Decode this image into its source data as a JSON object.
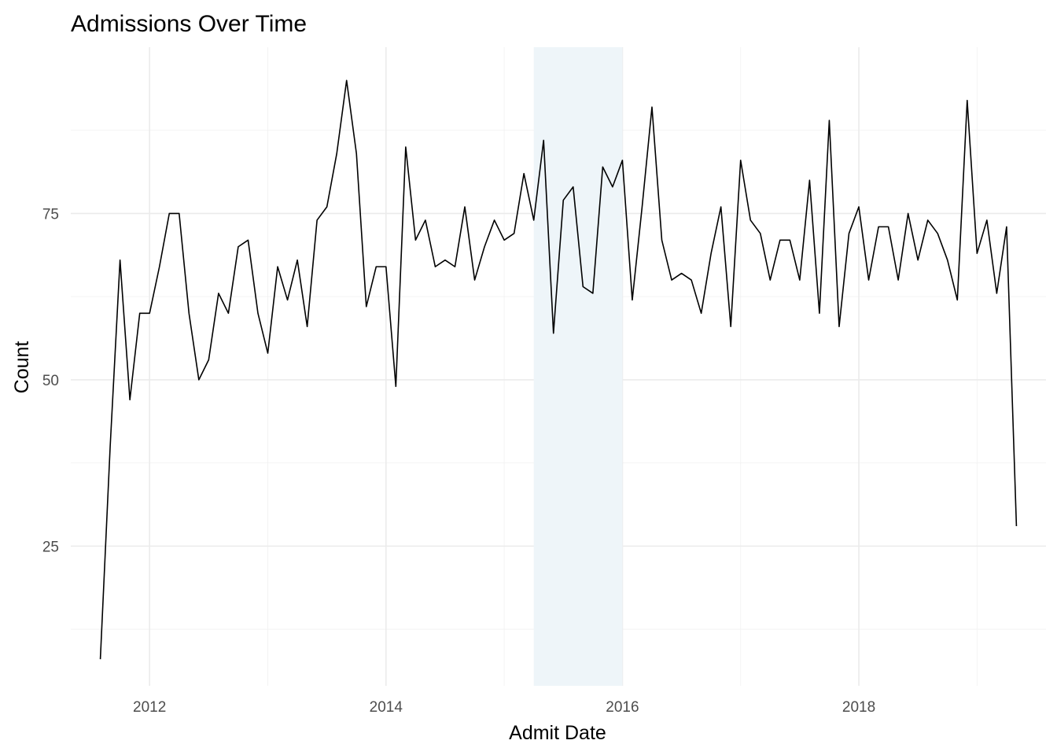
{
  "chart_data": {
    "type": "line",
    "title": "Admissions Over Time",
    "xlabel": "Admit Date",
    "ylabel": "Count",
    "x_ticks": [
      "2012",
      "2014",
      "2016",
      "2018"
    ],
    "y_ticks": [
      25,
      50,
      75
    ],
    "xlim": [
      "2011-05-01",
      "2019-08-01"
    ],
    "ylim": [
      4,
      100
    ],
    "grid": true,
    "legend": "none",
    "highlight_band": {
      "x_start": "2015-04-01",
      "x_end": "2016-01-01",
      "color": "#eef5f9"
    },
    "line_color": "#000000",
    "series": [
      {
        "x": [
          "2011-08",
          "2011-09",
          "2011-10",
          "2011-11",
          "2011-12",
          "2012-01",
          "2012-02",
          "2012-03",
          "2012-04",
          "2012-05",
          "2012-06",
          "2012-07",
          "2012-08",
          "2012-09",
          "2012-10",
          "2012-11",
          "2012-12",
          "2013-01",
          "2013-02",
          "2013-03",
          "2013-04",
          "2013-05",
          "2013-06",
          "2013-07",
          "2013-08",
          "2013-09",
          "2013-10",
          "2013-11",
          "2013-12",
          "2014-01",
          "2014-02",
          "2014-03",
          "2014-04",
          "2014-05",
          "2014-06",
          "2014-07",
          "2014-08",
          "2014-09",
          "2014-10",
          "2014-11",
          "2014-12",
          "2015-01",
          "2015-02",
          "2015-03",
          "2015-04",
          "2015-05",
          "2015-06",
          "2015-07",
          "2015-08",
          "2015-09",
          "2015-10",
          "2015-11",
          "2015-12",
          "2016-01",
          "2016-02",
          "2016-03",
          "2016-04",
          "2016-05",
          "2016-06",
          "2016-07",
          "2016-08",
          "2016-09",
          "2016-10",
          "2016-11",
          "2016-12",
          "2017-01",
          "2017-02",
          "2017-03",
          "2017-04",
          "2017-05",
          "2017-06",
          "2017-07",
          "2017-08",
          "2017-09",
          "2017-10",
          "2017-11",
          "2017-12",
          "2018-01",
          "2018-02",
          "2018-03",
          "2018-04",
          "2018-05",
          "2018-06",
          "2018-07",
          "2018-08",
          "2018-09",
          "2018-10",
          "2018-11",
          "2018-12",
          "2019-01",
          "2019-02",
          "2019-03",
          "2019-04",
          "2019-05"
        ],
        "values": [
          8,
          40,
          68,
          47,
          60,
          60,
          67,
          75,
          75,
          60,
          50,
          53,
          63,
          60,
          70,
          71,
          60,
          54,
          67,
          62,
          68,
          58,
          74,
          76,
          84,
          95,
          84,
          61,
          67,
          67,
          49,
          85,
          71,
          74,
          67,
          68,
          67,
          76,
          65,
          70,
          74,
          71,
          72,
          81,
          74,
          86,
          57,
          77,
          79,
          64,
          63,
          82,
          79,
          83,
          62,
          76,
          91,
          71,
          65,
          66,
          65,
          60,
          69,
          76,
          58,
          83,
          74,
          72,
          65,
          71,
          71,
          65,
          80,
          60,
          89,
          58,
          72,
          76,
          65,
          73,
          73,
          65,
          75,
          68,
          74,
          72,
          68,
          62,
          92,
          69,
          74,
          63,
          73,
          28
        ]
      }
    ]
  }
}
